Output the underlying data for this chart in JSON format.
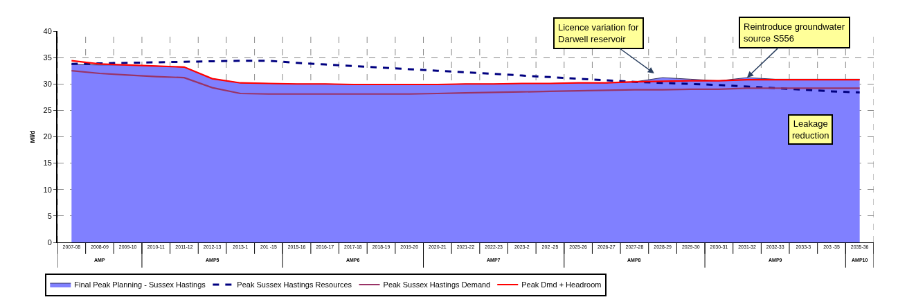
{
  "chart_data": {
    "type": "line",
    "ylabel": "Ml/d",
    "categories": [
      "2007-08",
      "2008-09",
      "2009-10",
      "2010-11",
      "2011-12",
      "2012-13",
      "2013-1",
      "201 -15",
      "2015-16",
      "2016-17",
      "2017-18",
      "2018-19",
      "2019-20",
      "2020-21",
      "2021-22",
      "2022-23",
      "2023-2",
      "202 -25",
      "2025-26",
      "2026-27",
      "2027-28",
      "2028-29",
      "2029-30",
      "2030-31",
      "2031-32",
      "2032-33",
      "2033-3",
      "203 -35",
      "2035-36"
    ],
    "series": [
      {
        "name": "Final Peak Planning - Sussex Hastings",
        "type": "area",
        "color": "#8080ff",
        "values": [
          33.7,
          33.6,
          33.6,
          33.4,
          33.2,
          31.0,
          30.2,
          30.1,
          30.0,
          30.0,
          29.9,
          29.9,
          29.9,
          29.9,
          30.0,
          30.0,
          30.1,
          30.1,
          30.2,
          30.2,
          30.4,
          31.2,
          30.9,
          30.6,
          31.2,
          30.9,
          30.9,
          30.9,
          30.9
        ]
      },
      {
        "name": "Peak Sussex Hastings Resources",
        "line_style": "dashed",
        "color": "#000080",
        "values": [
          33.8,
          33.9,
          34.0,
          34.1,
          34.2,
          34.3,
          34.4,
          34.4,
          34.0,
          33.7,
          33.4,
          33.1,
          32.8,
          32.5,
          32.2,
          31.9,
          31.6,
          31.3,
          31.0,
          30.7,
          30.4,
          30.2,
          30.0,
          29.8,
          29.5,
          29.2,
          28.9,
          28.6,
          28.4
        ]
      },
      {
        "name": "Peak Sussex Hastings Demand",
        "line_style": "solid",
        "color": "#993366",
        "values": [
          32.5,
          32.0,
          31.7,
          31.4,
          31.2,
          29.3,
          28.2,
          28.1,
          28.1,
          28.1,
          28.1,
          28.1,
          28.1,
          28.2,
          28.3,
          28.4,
          28.5,
          28.6,
          28.7,
          28.8,
          28.9,
          28.9,
          29.0,
          29.0,
          29.2,
          29.2,
          29.2,
          29.2,
          29.2
        ]
      },
      {
        "name": "Peak Dmd + Headroom",
        "line_style": "solid",
        "color": "#ff0000",
        "values": [
          34.4,
          33.8,
          33.6,
          33.4,
          33.2,
          31.0,
          30.2,
          30.1,
          30.0,
          30.0,
          29.9,
          29.9,
          29.9,
          29.9,
          30.0,
          30.0,
          30.1,
          30.1,
          30.2,
          30.2,
          30.4,
          30.5,
          30.6,
          30.6,
          30.8,
          30.8,
          30.8,
          30.8,
          30.8
        ]
      }
    ],
    "ylim": [
      0,
      40
    ],
    "yticks": [
      0,
      5,
      10,
      15,
      20,
      25,
      30,
      35,
      40
    ],
    "grid": true,
    "legend": "bottom",
    "marker": "none",
    "annotations": [
      "Licence variation for Darwell reservoir",
      {
        "text": "Reintroduce groundwater source S556",
        "x": "2031-32",
        "y": 31.2
      },
      "Leakage reduction",
      "AMP",
      "AMP5",
      "AMP6",
      "AMP7",
      "AMP8",
      "AMP9",
      "AMP10"
    ]
  }
}
